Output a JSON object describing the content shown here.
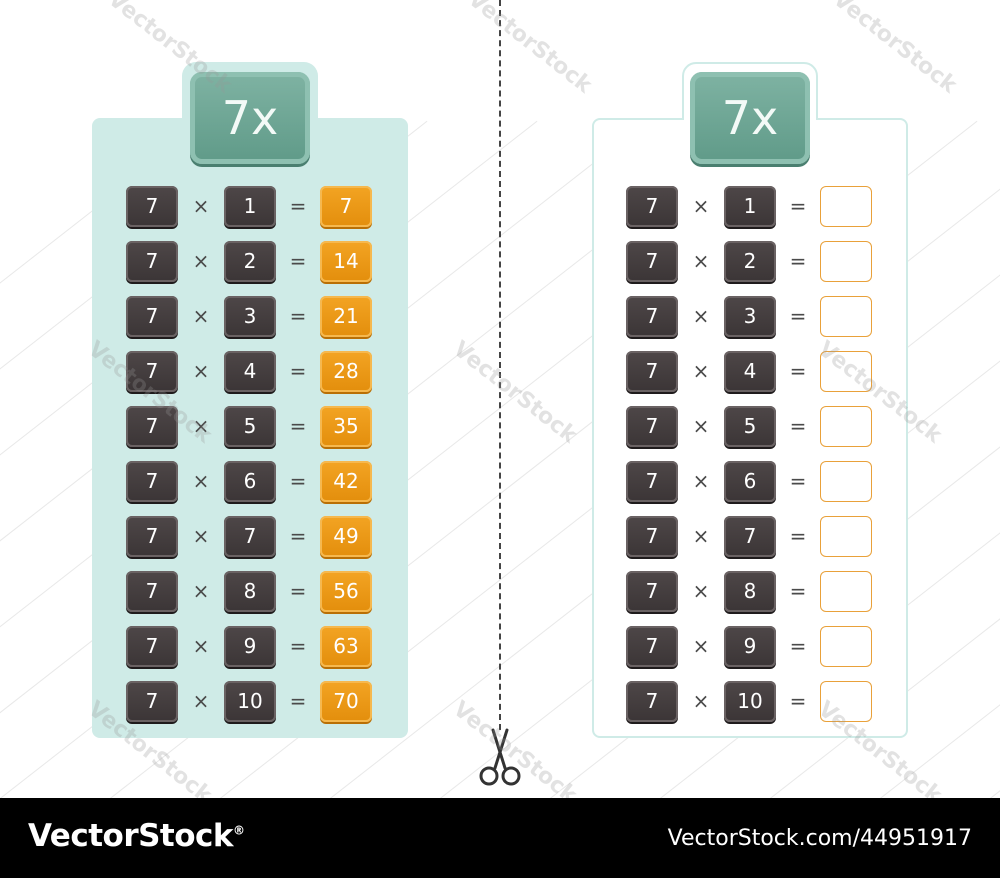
{
  "title": "7x",
  "filled_table": {
    "rows": [
      {
        "a": "7",
        "op": "×",
        "b": "1",
        "eq": "=",
        "answer": "7"
      },
      {
        "a": "7",
        "op": "×",
        "b": "2",
        "eq": "=",
        "answer": "14"
      },
      {
        "a": "7",
        "op": "×",
        "b": "3",
        "eq": "=",
        "answer": "21"
      },
      {
        "a": "7",
        "op": "×",
        "b": "4",
        "eq": "=",
        "answer": "28"
      },
      {
        "a": "7",
        "op": "×",
        "b": "5",
        "eq": "=",
        "answer": "35"
      },
      {
        "a": "7",
        "op": "×",
        "b": "6",
        "eq": "=",
        "answer": "42"
      },
      {
        "a": "7",
        "op": "×",
        "b": "7",
        "eq": "=",
        "answer": "49"
      },
      {
        "a": "7",
        "op": "×",
        "b": "8",
        "eq": "=",
        "answer": "56"
      },
      {
        "a": "7",
        "op": "×",
        "b": "9",
        "eq": "=",
        "answer": "63"
      },
      {
        "a": "7",
        "op": "×",
        "b": "10",
        "eq": "=",
        "answer": "70"
      }
    ]
  },
  "blank_table": {
    "rows": [
      {
        "a": "7",
        "op": "×",
        "b": "1",
        "eq": "="
      },
      {
        "a": "7",
        "op": "×",
        "b": "2",
        "eq": "="
      },
      {
        "a": "7",
        "op": "×",
        "b": "3",
        "eq": "="
      },
      {
        "a": "7",
        "op": "×",
        "b": "4",
        "eq": "="
      },
      {
        "a": "7",
        "op": "×",
        "b": "5",
        "eq": "="
      },
      {
        "a": "7",
        "op": "×",
        "b": "6",
        "eq": "="
      },
      {
        "a": "7",
        "op": "×",
        "b": "7",
        "eq": "="
      },
      {
        "a": "7",
        "op": "×",
        "b": "8",
        "eq": "="
      },
      {
        "a": "7",
        "op": "×",
        "b": "9",
        "eq": "="
      },
      {
        "a": "7",
        "op": "×",
        "b": "10",
        "eq": "="
      }
    ]
  },
  "icons": {
    "cut": "scissors-icon"
  },
  "watermark": "VectorStock",
  "footer": {
    "brand": "VectorStock",
    "registered": "®",
    "credit": "VectorStock.com/44951917"
  },
  "colors": {
    "card": "#cfebe7",
    "badge": "#6aa593",
    "key": "#443e3f",
    "answer": "#ef9b17"
  }
}
